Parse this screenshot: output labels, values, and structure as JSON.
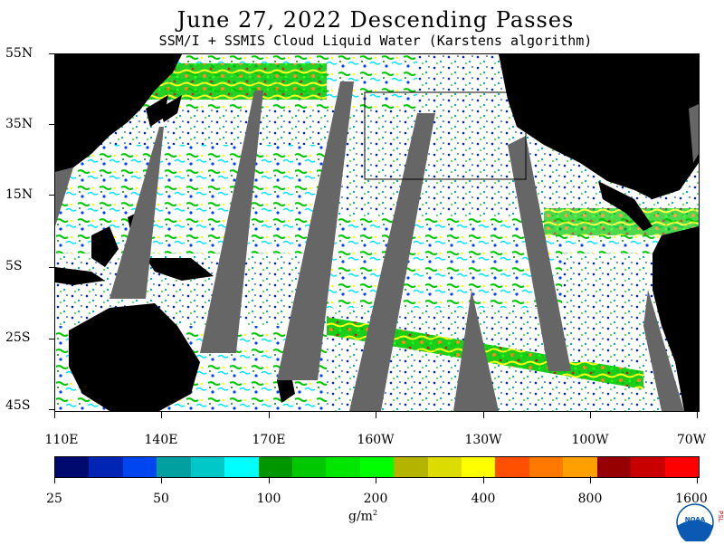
{
  "title": "June 27, 2022  Descending Passes",
  "subtitle": "SSM/I + SSMIS Cloud Liquid Water (Karstens algorithm)",
  "map": {
    "lat_labels": [
      "55N",
      "35N",
      "15N",
      "5S",
      "25S",
      "45S"
    ],
    "lon_labels": [
      "110E",
      "140E",
      "170E",
      "160W",
      "130W",
      "100W",
      "70W"
    ]
  },
  "colorbar": {
    "colors": [
      "#000a6e",
      "#0024b4",
      "#0046f0",
      "#00a0a0",
      "#00c8c8",
      "#00ffff",
      "#009600",
      "#00c800",
      "#00e600",
      "#00ff00",
      "#b4b400",
      "#dcdc00",
      "#ffff00",
      "#ff5000",
      "#ff7800",
      "#ffa000",
      "#960000",
      "#c80000",
      "#ff0000"
    ],
    "labels": [
      "25",
      "50",
      "100",
      "200",
      "400",
      "800",
      "1600"
    ],
    "units": "g/m"
  },
  "logo": {
    "text": "NOAA",
    "side_text": "PSL"
  }
}
